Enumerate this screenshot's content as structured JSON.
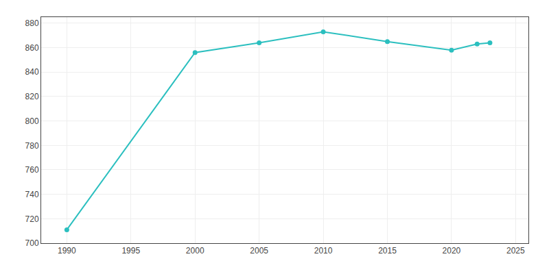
{
  "chart_data": {
    "type": "line",
    "x": [
      1990,
      2000,
      2005,
      2010,
      2015,
      2020,
      2022,
      2023
    ],
    "values": [
      711,
      856,
      864,
      873,
      865,
      858,
      863,
      864
    ],
    "color": "#2bbfbf",
    "marker": "circle",
    "line_style": "solid",
    "xlim": [
      1988,
      2026
    ],
    "xticks": [
      1990,
      1995,
      2000,
      2005,
      2010,
      2015,
      2020,
      2025
    ],
    "ylim": [
      700,
      885
    ],
    "yticks": [
      700,
      720,
      740,
      760,
      780,
      800,
      820,
      840,
      860,
      880
    ],
    "grid": true
  }
}
